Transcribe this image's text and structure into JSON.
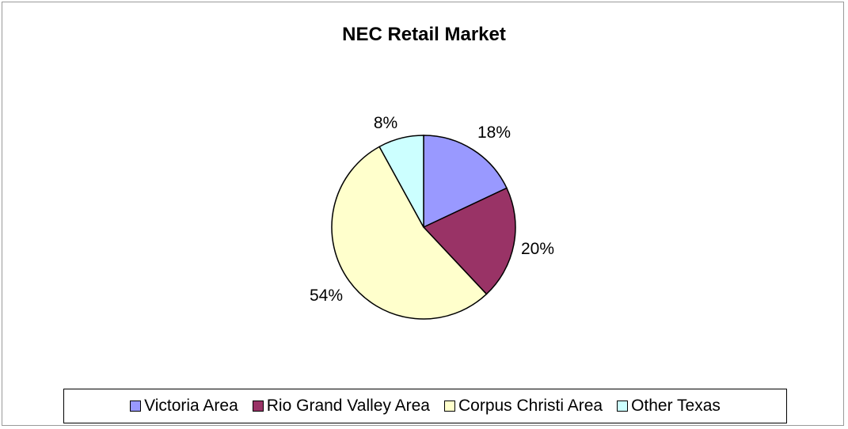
{
  "chart_data": {
    "type": "pie",
    "title": "NEC Retail Market",
    "slices": [
      {
        "name": "Victoria Area",
        "value": 18,
        "label": "18%",
        "color": "#9999ff"
      },
      {
        "name": "Rio Grand Valley Area",
        "value": 20,
        "label": "20%",
        "color": "#993366"
      },
      {
        "name": "Corpus Christi Area",
        "value": 54,
        "label": "54%",
        "color": "#ffffcc"
      },
      {
        "name": "Other Texas",
        "value": 8,
        "label": "8%",
        "color": "#ccffff"
      }
    ],
    "legend_position": "bottom"
  }
}
